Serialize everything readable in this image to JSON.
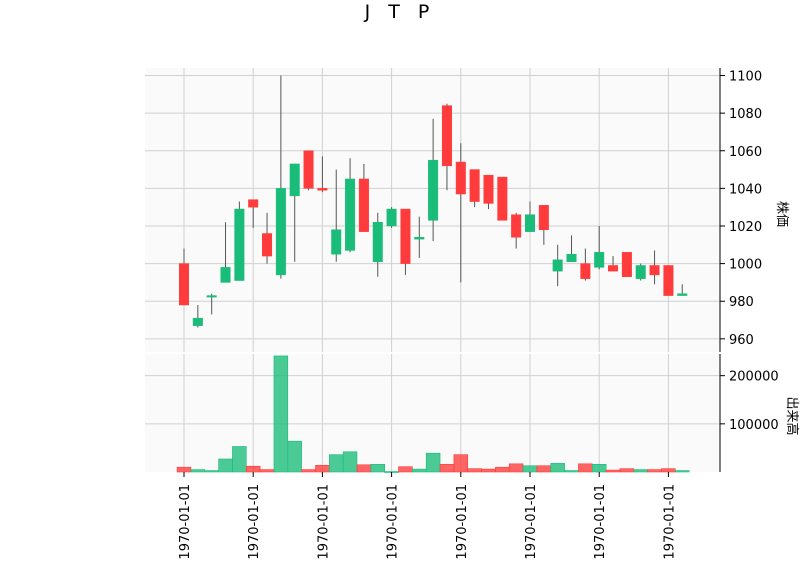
{
  "chart_data": {
    "type": "candlestick",
    "title": "J T P",
    "ylabel_price": "株価",
    "ylabel_volume": "出来高",
    "price_ylim": [
      953,
      1104
    ],
    "price_ticks": [
      960,
      980,
      1000,
      1020,
      1040,
      1060,
      1080,
      1100
    ],
    "volume_ylim": [
      0,
      245000
    ],
    "volume_ticks": [
      100000,
      200000
    ],
    "volume_tick_labels": [
      "100000",
      "200000"
    ],
    "x_tick_labels": [
      "1970-01-01",
      "1970-01-01",
      "1970-01-01",
      "1970-01-01",
      "1970-01-01",
      "1970-01-01",
      "1970-01-01",
      "1970-01-01"
    ],
    "x_tick_indices": [
      0,
      5,
      10,
      15,
      20,
      25,
      30,
      35
    ],
    "grid": true,
    "colors": {
      "up": "#1abc7a",
      "down": "#ff3b3b",
      "wick": "#555555",
      "grid": "#d0d0d0",
      "panel": "#fafafa"
    },
    "candles": [
      {
        "open": 1000,
        "high": 1008,
        "low": 978,
        "close": 978,
        "volume": 10000
      },
      {
        "open": 967,
        "high": 978,
        "low": 966,
        "close": 971,
        "volume": 5000
      },
      {
        "open": 983,
        "high": 984,
        "low": 973,
        "close": 983,
        "volume": 3000
      },
      {
        "open": 990,
        "high": 1022,
        "low": 990,
        "close": 998,
        "volume": 27000
      },
      {
        "open": 991,
        "high": 1033,
        "low": 991,
        "close": 1029,
        "volume": 53000
      },
      {
        "open": 1034,
        "high": 1034,
        "low": 1019,
        "close": 1030,
        "volume": 12000
      },
      {
        "open": 1016,
        "high": 1027,
        "low": 1000,
        "close": 1004,
        "volume": 5000
      },
      {
        "open": 994,
        "high": 1100,
        "low": 992,
        "close": 1040,
        "volume": 241000
      },
      {
        "open": 1036,
        "high": 1053,
        "low": 1001,
        "close": 1053,
        "volume": 64000
      },
      {
        "open": 1060,
        "high": 1060,
        "low": 1039,
        "close": 1040,
        "volume": 5000
      },
      {
        "open": 1040,
        "high": 1057,
        "low": 1038,
        "close": 1039,
        "volume": 14000
      },
      {
        "open": 1005,
        "high": 1050,
        "low": 1001,
        "close": 1018,
        "volume": 36000
      },
      {
        "open": 1007,
        "high": 1056,
        "low": 1006,
        "close": 1045,
        "volume": 42000
      },
      {
        "open": 1045,
        "high": 1053,
        "low": 1017,
        "close": 1017,
        "volume": 15000
      },
      {
        "open": 1001,
        "high": 1027,
        "low": 993,
        "close": 1022,
        "volume": 16000
      },
      {
        "open": 1020,
        "high": 1030,
        "low": 1019,
        "close": 1029,
        "volume": 1000
      },
      {
        "open": 1029,
        "high": 1029,
        "low": 994,
        "close": 1000,
        "volume": 11000
      },
      {
        "open": 1013,
        "high": 1025,
        "low": 1003,
        "close": 1014,
        "volume": 6000
      },
      {
        "open": 1023,
        "high": 1077,
        "low": 1012,
        "close": 1055,
        "volume": 39000
      },
      {
        "open": 1084,
        "high": 1085,
        "low": 1039,
        "close": 1052,
        "volume": 16000
      },
      {
        "open": 1054,
        "high": 1064,
        "low": 990,
        "close": 1037,
        "volume": 36000
      },
      {
        "open": 1050,
        "high": 1050,
        "low": 1030,
        "close": 1033,
        "volume": 7000
      },
      {
        "open": 1047,
        "high": 1047,
        "low": 1029,
        "close": 1032,
        "volume": 6000
      },
      {
        "open": 1046,
        "high": 1046,
        "low": 1023,
        "close": 1023,
        "volume": 10000
      },
      {
        "open": 1026,
        "high": 1027,
        "low": 1008,
        "close": 1014,
        "volume": 17000
      },
      {
        "open": 1017,
        "high": 1033,
        "low": 1017,
        "close": 1026,
        "volume": 13000
      },
      {
        "open": 1031,
        "high": 1031,
        "low": 1010,
        "close": 1018,
        "volume": 13000
      },
      {
        "open": 996,
        "high": 1010,
        "low": 988,
        "close": 1002,
        "volume": 18000
      },
      {
        "open": 1001,
        "high": 1015,
        "low": 1001,
        "close": 1005,
        "volume": 3000
      },
      {
        "open": 1000,
        "high": 1008,
        "low": 991,
        "close": 992,
        "volume": 17000
      },
      {
        "open": 998,
        "high": 1020,
        "low": 997,
        "close": 1006,
        "volume": 16000
      },
      {
        "open": 999,
        "high": 1004,
        "low": 996,
        "close": 996,
        "volume": 4000
      },
      {
        "open": 1006,
        "high": 1006,
        "low": 993,
        "close": 993,
        "volume": 7000
      },
      {
        "open": 992,
        "high": 1000,
        "low": 991,
        "close": 999,
        "volume": 5000
      },
      {
        "open": 999,
        "high": 1007,
        "low": 989,
        "close": 994,
        "volume": 5000
      },
      {
        "open": 999,
        "high": 999,
        "low": 983,
        "close": 983,
        "volume": 7000
      },
      {
        "open": 983,
        "high": 989,
        "low": 983,
        "close": 984,
        "volume": 3000
      }
    ]
  }
}
